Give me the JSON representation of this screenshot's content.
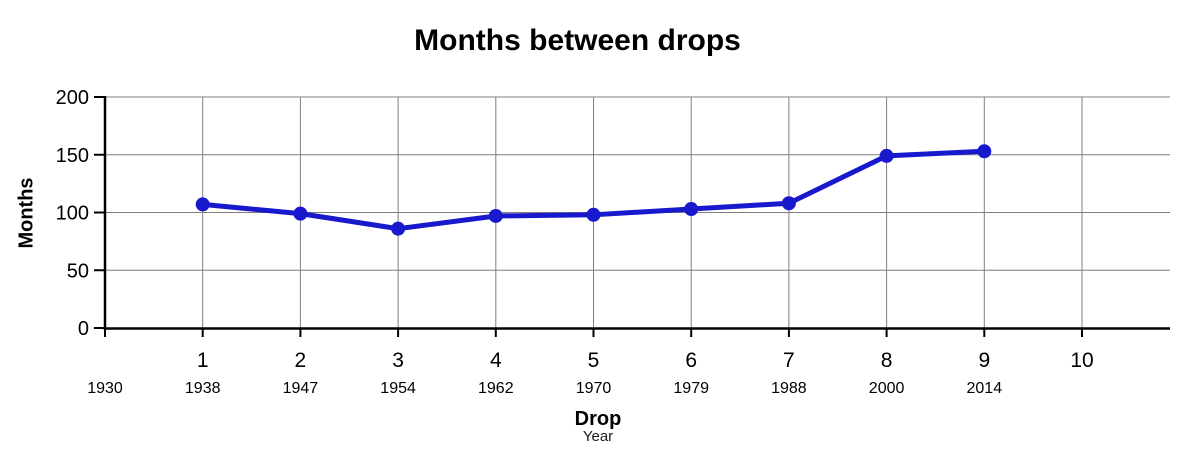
{
  "page": {
    "background": "#ffffff"
  },
  "chart_data": {
    "type": "line",
    "title": "Months between drops",
    "ylabel": "Months",
    "xlabel": "Drop",
    "xlabel_secondary": "Year",
    "ylim": [
      0,
      200
    ],
    "yticks": [
      0,
      50,
      100,
      150,
      200
    ],
    "grid": true,
    "legend_position": "none",
    "grid_color": "#7f7f7f",
    "axis_color": "#000000",
    "text_color": "#000000",
    "drop_ticks": [
      "1",
      "2",
      "3",
      "4",
      "5",
      "6",
      "7",
      "8",
      "9",
      "10"
    ],
    "year_labels": [
      {
        "drop": 0,
        "year": "1930"
      },
      {
        "drop": 1,
        "year": "1938"
      },
      {
        "drop": 2,
        "year": "1947"
      },
      {
        "drop": 3,
        "year": "1954"
      },
      {
        "drop": 4,
        "year": "1962"
      },
      {
        "drop": 5,
        "year": "1970"
      },
      {
        "drop": 6,
        "year": "1979"
      },
      {
        "drop": 7,
        "year": "1988"
      },
      {
        "drop": 8,
        "year": "2000"
      },
      {
        "drop": 9,
        "year": "2014"
      }
    ],
    "series": [
      {
        "name": "Months between drops",
        "color": "#1818cd",
        "points": [
          {
            "drop": 1,
            "year": "1938",
            "months": 107
          },
          {
            "drop": 2,
            "year": "1947",
            "months": 99
          },
          {
            "drop": 3,
            "year": "1954",
            "months": 86
          },
          {
            "drop": 4,
            "year": "1962",
            "months": 97
          },
          {
            "drop": 5,
            "year": "1970",
            "months": 98
          },
          {
            "drop": 6,
            "year": "1979",
            "months": 103
          },
          {
            "drop": 7,
            "year": "1988",
            "months": 108
          },
          {
            "drop": 8,
            "year": "2000",
            "months": 149
          },
          {
            "drop": 9,
            "year": "2014",
            "months": 153
          }
        ]
      }
    ]
  }
}
